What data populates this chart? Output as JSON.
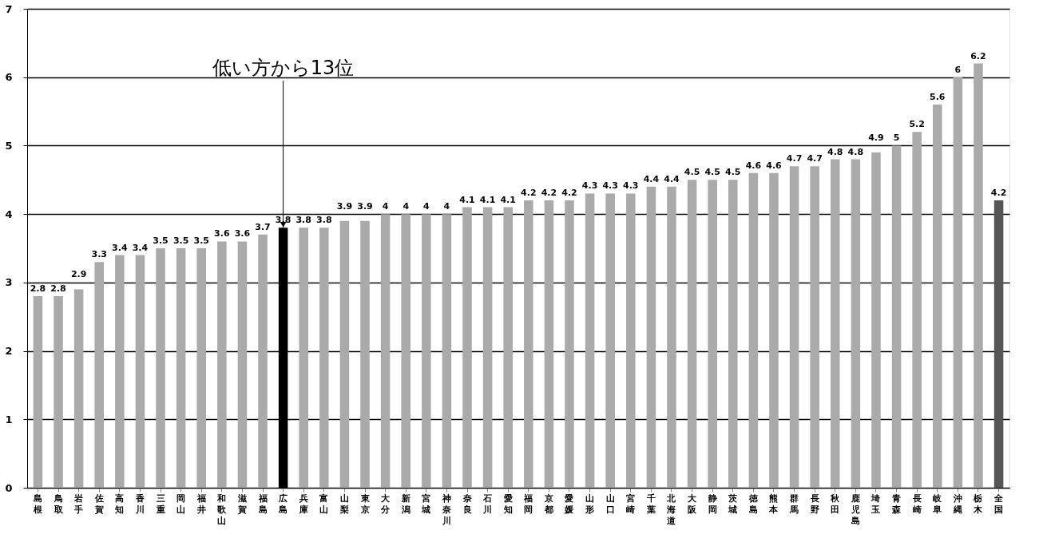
{
  "chart_data": {
    "type": "bar",
    "categories": [
      "島根",
      "鳥取",
      "岩手",
      "佐賀",
      "高知",
      "香川",
      "三重",
      "岡山",
      "福井",
      "和歌山",
      "滋賀",
      "福島",
      "広島",
      "兵庫",
      "富山",
      "山梨",
      "東京",
      "大分",
      "新潟",
      "宮城",
      "神奈川",
      "奈良",
      "石川",
      "愛知",
      "福岡",
      "京都",
      "愛媛",
      "山形",
      "山口",
      "宮崎",
      "千葉",
      "北海道",
      "大阪",
      "静岡",
      "茨城",
      "徳島",
      "熊本",
      "群馬",
      "長野",
      "秋田",
      "鹿児島",
      "埼玉",
      "青森",
      "長崎",
      "岐阜",
      "沖縄",
      "栃木",
      "全国"
    ],
    "values": [
      2.8,
      2.8,
      2.9,
      3.3,
      3.4,
      3.4,
      3.5,
      3.5,
      3.5,
      3.6,
      3.6,
      3.7,
      3.8,
      3.8,
      3.8,
      3.9,
      3.9,
      4,
      4,
      4,
      4,
      4.1,
      4.1,
      4.1,
      4.2,
      4.2,
      4.2,
      4.3,
      4.3,
      4.3,
      4.4,
      4.4,
      4.5,
      4.5,
      4.5,
      4.6,
      4.6,
      4.7,
      4.7,
      4.8,
      4.8,
      4.9,
      5,
      5.2,
      5.6,
      6,
      6.2,
      4.2
    ],
    "colors": [
      "#aaaaaa",
      "#aaaaaa",
      "#aaaaaa",
      "#aaaaaa",
      "#aaaaaa",
      "#aaaaaa",
      "#aaaaaa",
      "#aaaaaa",
      "#aaaaaa",
      "#aaaaaa",
      "#aaaaaa",
      "#aaaaaa",
      "#000000",
      "#aaaaaa",
      "#aaaaaa",
      "#aaaaaa",
      "#aaaaaa",
      "#aaaaaa",
      "#aaaaaa",
      "#aaaaaa",
      "#aaaaaa",
      "#aaaaaa",
      "#aaaaaa",
      "#aaaaaa",
      "#aaaaaa",
      "#aaaaaa",
      "#aaaaaa",
      "#aaaaaa",
      "#aaaaaa",
      "#aaaaaa",
      "#aaaaaa",
      "#aaaaaa",
      "#aaaaaa",
      "#aaaaaa",
      "#aaaaaa",
      "#aaaaaa",
      "#aaaaaa",
      "#aaaaaa",
      "#aaaaaa",
      "#aaaaaa",
      "#aaaaaa",
      "#aaaaaa",
      "#aaaaaa",
      "#aaaaaa",
      "#aaaaaa",
      "#aaaaaa",
      "#aaaaaa",
      "#555555"
    ],
    "ylim": [
      0,
      7
    ],
    "yticks": [
      0,
      1,
      2,
      3,
      4,
      5,
      6,
      7
    ],
    "grid": "y",
    "data_labels": true,
    "annotations": [
      {
        "text": "低い方から13位",
        "x": "広島",
        "y": 3.8
      }
    ]
  }
}
